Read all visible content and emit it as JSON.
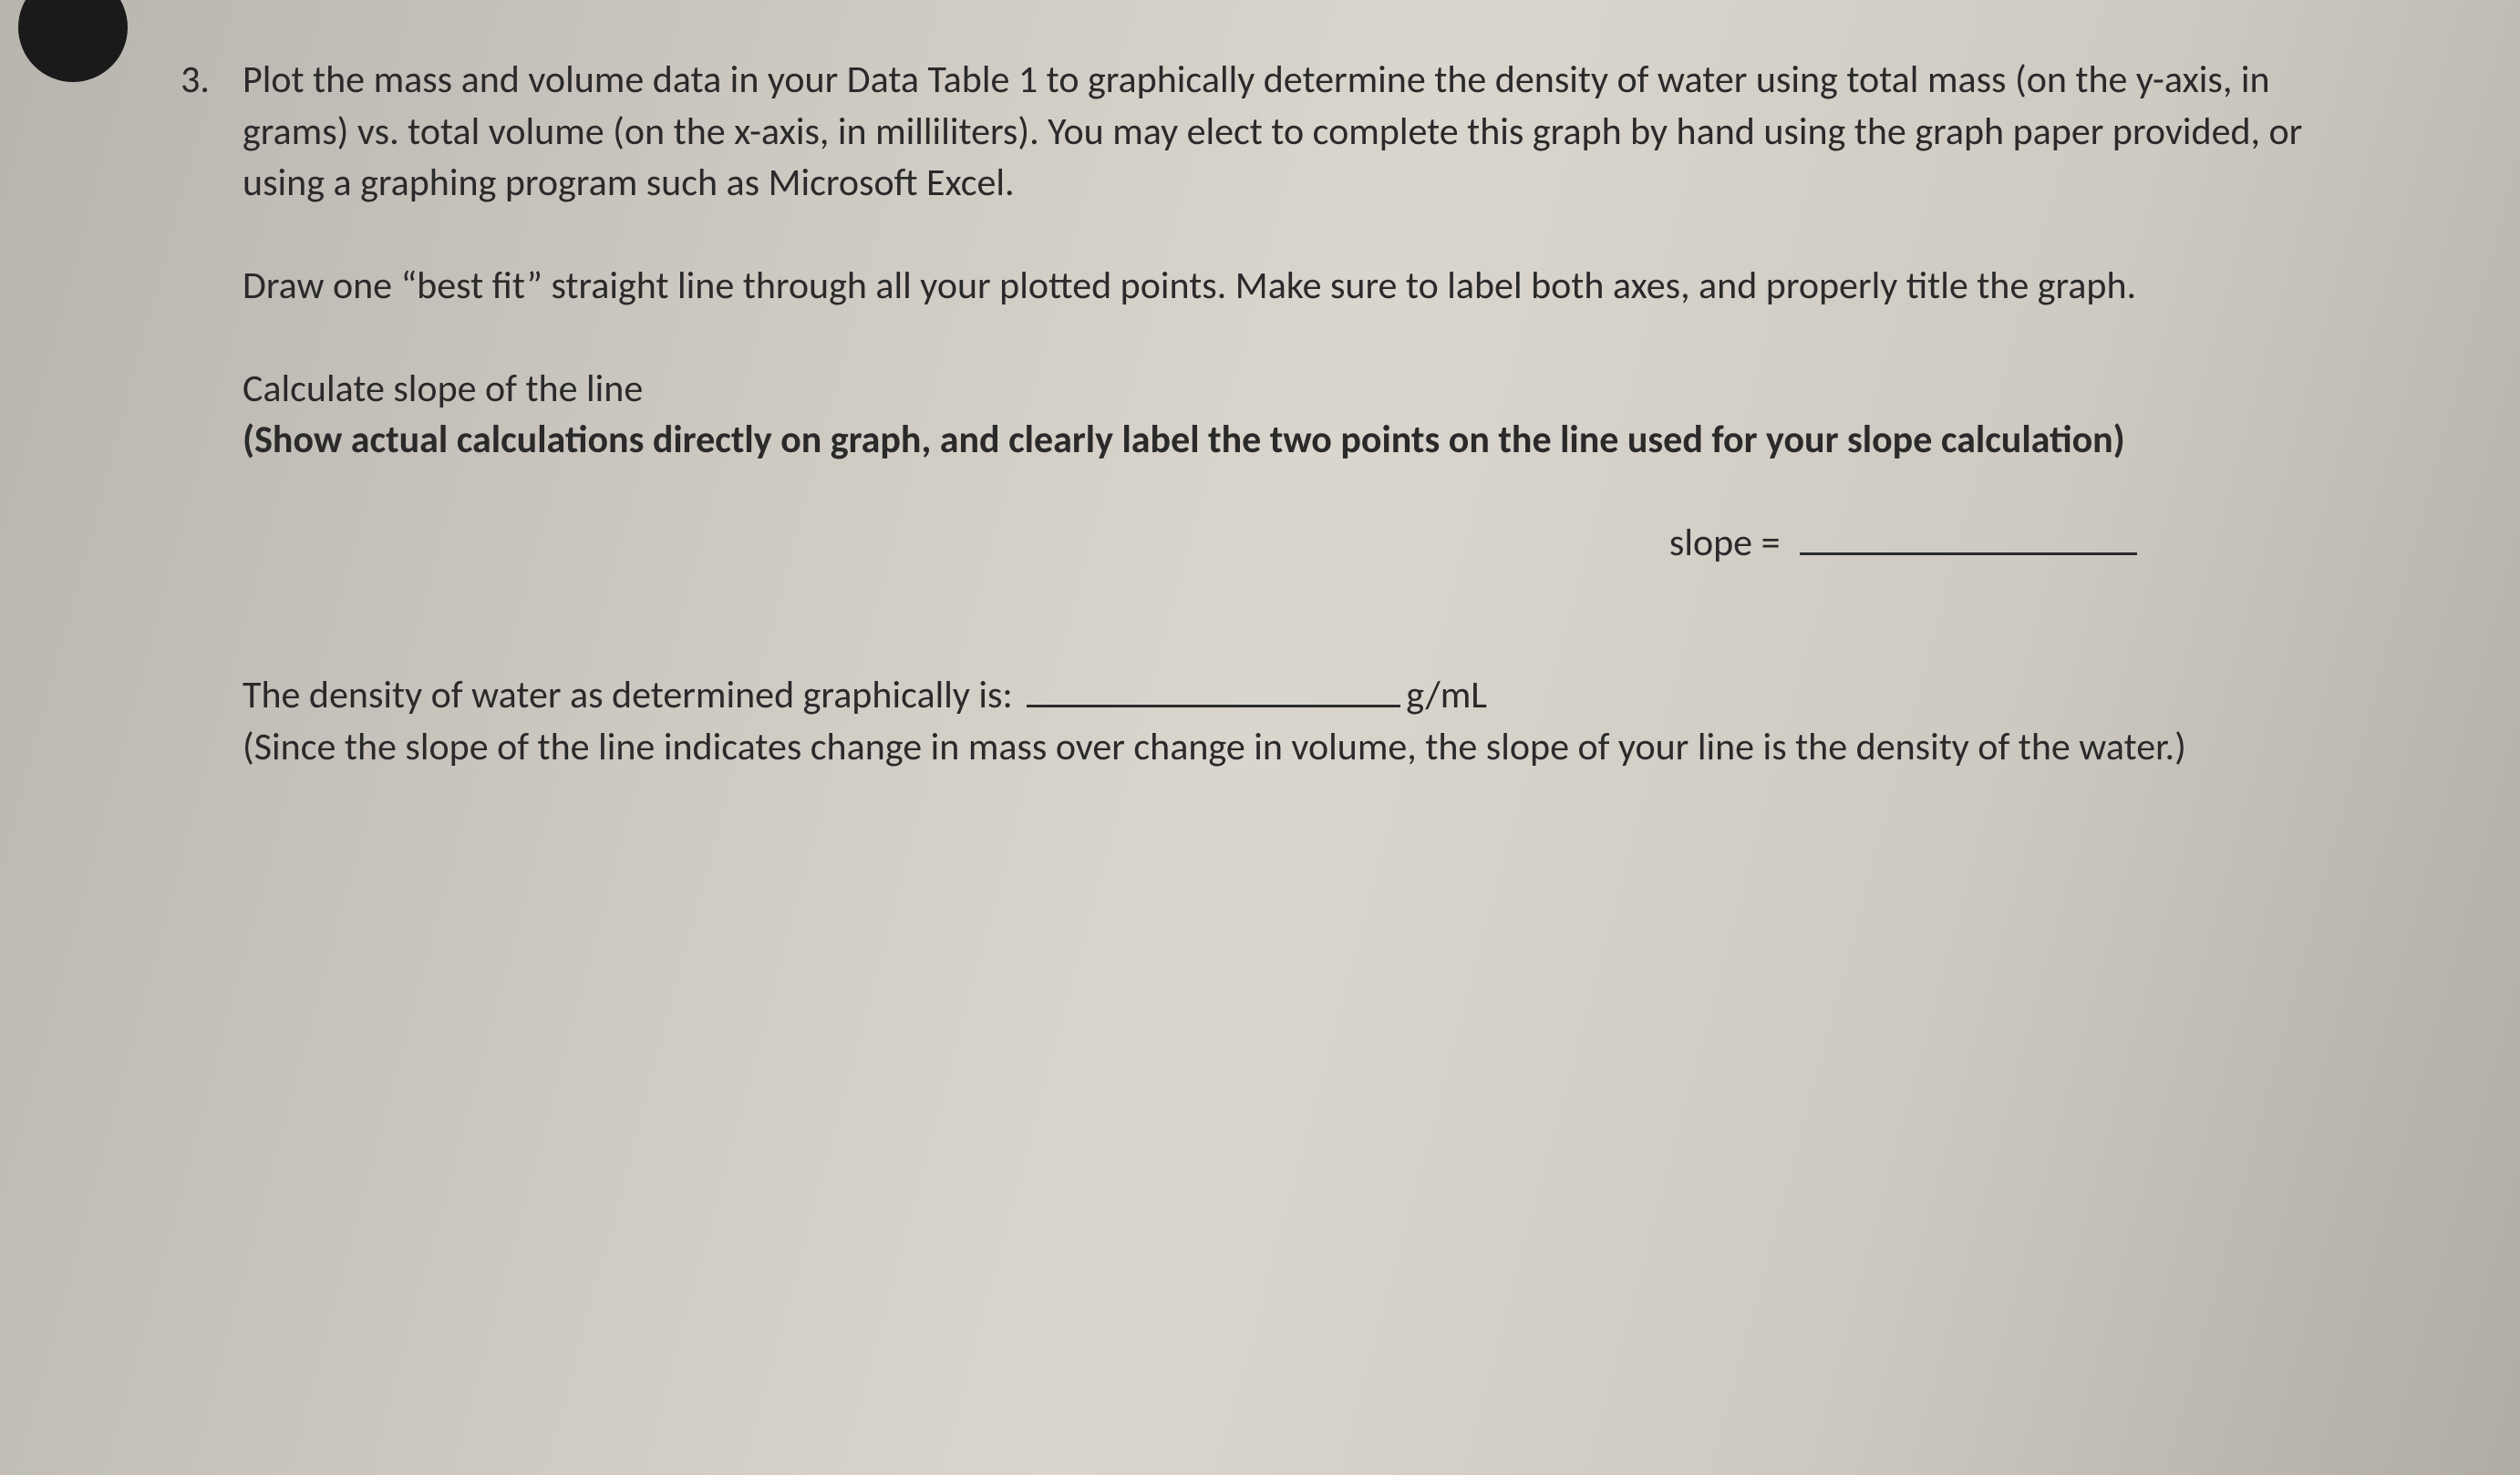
{
  "page": {
    "background": "#d2cec6",
    "text_color": "#2a2a2a",
    "font_family": "Calibri",
    "body_fontsize_pt": 32
  },
  "question": {
    "number": "3.",
    "para1": "Plot the mass and volume data in your Data Table 1 to graphically determine the density of water using total mass (on the y-axis, in grams) vs. total volume (on the x-axis, in milliliters).  You may elect to complete this graph by hand using the graph paper provided, or using a graphing program such as Microsoft Excel.",
    "para2": "Draw one “best fit” straight line through all your plotted points.  Make sure to label both axes, and properly title the graph.",
    "para3_line1": "Calculate slope of the line",
    "para3_line2_bold": "(Show actual calculations directly on graph, and clearly label the two points on the line used for your slope calculation)",
    "slope_label": "slope =",
    "density_line_prefix": "The density of water as determined graphically is:",
    "density_unit": "g/mL",
    "density_explain": "(Since the slope of the line indicates change in mass over change in volume, the slope of your line is the density of the water.)"
  }
}
